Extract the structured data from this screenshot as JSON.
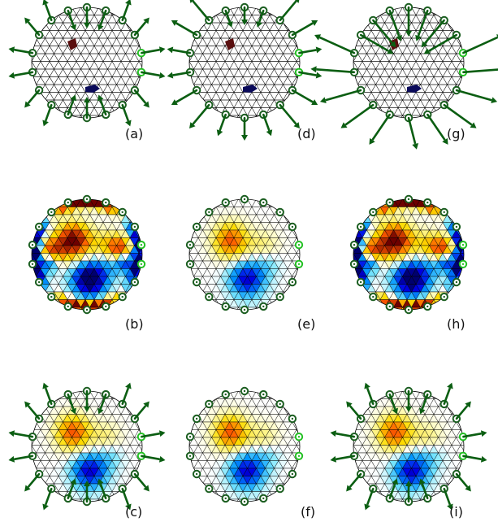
{
  "panels": [
    {
      "id": "a",
      "label": "(a)",
      "kind": "mesh",
      "arrows": "uniform"
    },
    {
      "id": "d",
      "label": "(d)",
      "kind": "mesh",
      "arrows": "diag-large"
    },
    {
      "id": "g",
      "label": "(g)",
      "kind": "mesh",
      "arrows": "fan-large"
    },
    {
      "id": "b",
      "label": "(b)",
      "kind": "field",
      "intensity": "strong"
    },
    {
      "id": "e",
      "label": "(e)",
      "kind": "field",
      "intensity": "weak"
    },
    {
      "id": "h",
      "label": "(h)",
      "kind": "field",
      "intensity": "strong"
    },
    {
      "id": "c",
      "label": "(c)",
      "kind": "field-arrows",
      "arrows": "uniform"
    },
    {
      "id": "f",
      "label": "(f)",
      "kind": "field",
      "intensity": "weak"
    },
    {
      "id": "i",
      "label": "(i)",
      "kind": "field-arrows",
      "arrows": "uniform"
    }
  ],
  "colors": {
    "mesh_line": "#000000",
    "node_dark": "#1b5e20",
    "node_highlight": "#22c022",
    "arrow": "#0b5e12",
    "source_red": "#5a0f0f",
    "source_blue": "#0a0a5a"
  },
  "icons": {
    "electrode": "circle-node-icon",
    "force": "arrow-icon"
  }
}
